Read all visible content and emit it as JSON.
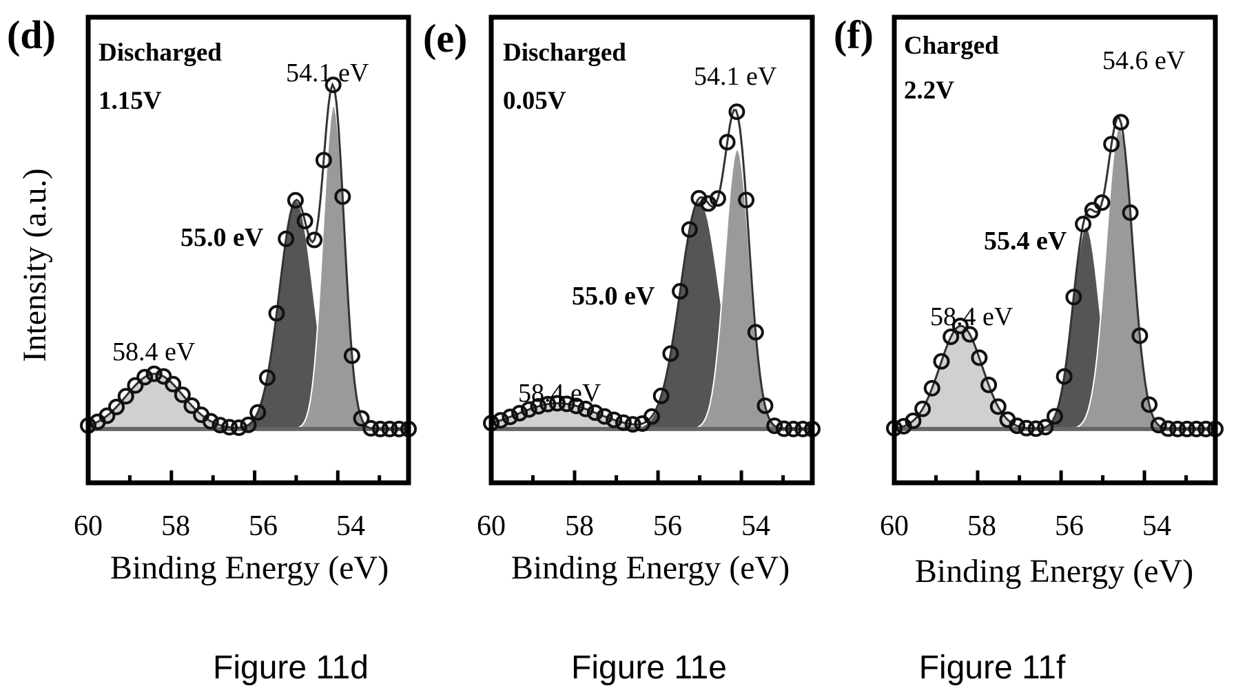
{
  "figure": {
    "y_axis_label": "Intensity (a.u.)",
    "x_axis_label": "Binding Energy (eV)"
  },
  "chart_data": [
    {
      "type": "area",
      "panel": "(d)",
      "caption": "Figure 11d",
      "state": "Discharged",
      "voltage": "1.15V",
      "xlabel": "Binding Energy (eV)",
      "ylabel": "Intensity (a.u.)",
      "xlim": [
        60,
        52.3
      ],
      "x_reversed": true,
      "ticks": [
        60,
        58,
        56,
        54
      ],
      "baseline": 0.06,
      "peaks": [
        {
          "center": 58.4,
          "label": "58.4 eV",
          "height": 0.15,
          "width": 1.6,
          "color": "#d0d0d0"
        },
        {
          "center": 55.0,
          "label": "55.0 eV",
          "height": 0.62,
          "width": 0.95,
          "color": "#555555"
        },
        {
          "center": 54.1,
          "label": "54.1 eV",
          "height": 0.88,
          "width": 0.6,
          "color": "#9a9a9a"
        }
      ],
      "data_labels": [
        "54.1 eV",
        "55.0 eV",
        "58.4 eV"
      ]
    },
    {
      "type": "area",
      "panel": "(e)",
      "caption": "Figure 11e",
      "state": "Discharged",
      "voltage": "0.05V",
      "xlabel": "Binding Energy (eV)",
      "ylabel": "Intensity (a.u.)",
      "xlim": [
        60,
        52.3
      ],
      "x_reversed": true,
      "ticks": [
        60,
        58,
        56,
        54
      ],
      "baseline": 0.06,
      "peaks": [
        {
          "center": 58.4,
          "label": "58.4 eV",
          "height": 0.07,
          "width": 2.2,
          "color": "#d0d0d0"
        },
        {
          "center": 55.0,
          "label": "55.0 eV",
          "height": 0.62,
          "width": 1.1,
          "color": "#555555"
        },
        {
          "center": 54.1,
          "label": "54.1 eV",
          "height": 0.76,
          "width": 0.7,
          "color": "#9a9a9a"
        }
      ],
      "data_labels": [
        "54.1 eV",
        "55.0 eV",
        "58.4 eV"
      ]
    },
    {
      "type": "area",
      "panel": "(f)",
      "caption": "Figure 11f",
      "state": "Charged",
      "voltage": "2.2V",
      "xlabel": "Binding Energy (eV)",
      "ylabel": "Intensity (a.u.)",
      "xlim": [
        60,
        52.3
      ],
      "x_reversed": true,
      "ticks": [
        60,
        58,
        56,
        54
      ],
      "baseline": 0.06,
      "peaks": [
        {
          "center": 58.4,
          "label": "58.4 eV",
          "height": 0.28,
          "width": 1.2,
          "color": "#d0d0d0"
        },
        {
          "center": 55.4,
          "label": "55.4 eV",
          "height": 0.55,
          "width": 0.75,
          "color": "#555555"
        },
        {
          "center": 54.6,
          "label": "54.6 eV",
          "height": 0.82,
          "width": 0.75,
          "color": "#9a9a9a"
        }
      ],
      "data_labels": [
        "54.6 eV",
        "55.4 eV",
        "58.4 eV"
      ]
    }
  ]
}
